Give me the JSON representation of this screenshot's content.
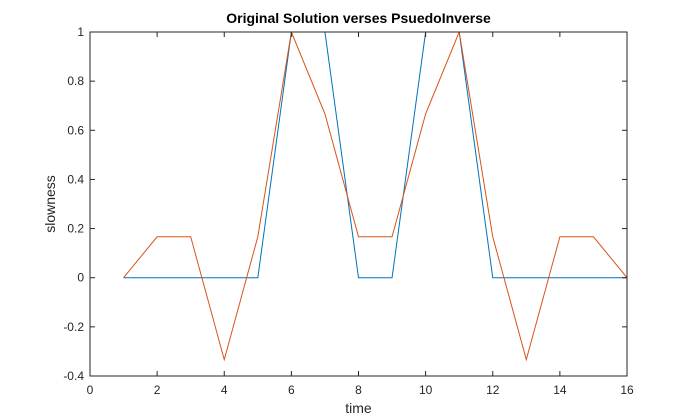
{
  "chart_data": {
    "type": "line",
    "title": "Original Solution verses PsuedoInverse",
    "xlabel": "time",
    "ylabel": "slowness",
    "xlim": [
      0,
      16
    ],
    "ylim": [
      -0.4,
      1
    ],
    "xticks": [
      0,
      2,
      4,
      6,
      8,
      10,
      12,
      14,
      16
    ],
    "yticks": [
      -0.4,
      -0.2,
      0,
      0.2,
      0.4,
      0.6,
      0.8,
      1
    ],
    "grid": false,
    "series": [
      {
        "color": "#0072BD",
        "x": [
          1,
          2,
          3,
          4,
          5,
          6,
          7,
          8,
          9,
          10,
          11,
          12,
          13,
          14,
          15,
          16
        ],
        "y": [
          0,
          0,
          0,
          0,
          0,
          1,
          1,
          0,
          0,
          1,
          1,
          0,
          0,
          0,
          0,
          0
        ]
      },
      {
        "color": "#D95319",
        "x": [
          1,
          2,
          3,
          4,
          5,
          6,
          7,
          8,
          9,
          10,
          11,
          12,
          13,
          14,
          15,
          16
        ],
        "y": [
          0,
          0.1667,
          0.1667,
          -0.3333,
          0.1667,
          1,
          0.6667,
          0.1667,
          0.1667,
          0.6667,
          1,
          0.1667,
          -0.3333,
          0.1667,
          0.1667,
          0
        ]
      }
    ]
  }
}
